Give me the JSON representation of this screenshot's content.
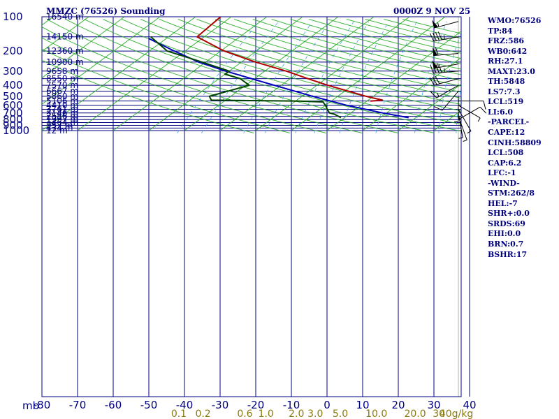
{
  "header": {
    "title": "MMZC (76526) Sounding",
    "time": "0000Z  9 NOV 25"
  },
  "stats": [
    "WMO:76526",
    "TP:84",
    "FRZ:586",
    "WB0:642",
    "RH:27.1",
    "MAXT:23.0",
    "TH:5848",
    "LS7:7.3",
    "LCL:519",
    "LI:6.0",
    "-PARCEL-",
    "CAPE:12",
    "CINH:58809",
    "LCL:508",
    "CAP:6.2",
    "LFC:-1",
    "-WIND-",
    "STM:262/8",
    "HEL:-7",
    "SHR+:0.0",
    "SRDS:69",
    "EHI:0.0",
    "BRN:0.7",
    "BSHR:17"
  ],
  "colors": {
    "grid": "#000080",
    "dry_adiabat": "#22aa22",
    "moist_adiabat": "#333333",
    "mixing_ratio": "#3399ee",
    "temperature": "#b00000",
    "dewpoint": "#004400",
    "parcel": "#0000bb",
    "wind": "#000000",
    "mixing_label": "#8a7a10"
  },
  "chart_data": {
    "type": "skew-t",
    "title": "MMZC (76526) Sounding",
    "xlabel": "mb",
    "pressure_ticks": [
      "100",
      "200",
      "300",
      "400",
      "500",
      "600",
      "700",
      "800",
      "900",
      "1000"
    ],
    "temperature_ticks": [
      "-80",
      "-70",
      "-60",
      "-50",
      "-40",
      "-30",
      "-20",
      "-10",
      "0",
      "10",
      "20",
      "30",
      "40"
    ],
    "height_labels": [
      {
        "p": 100,
        "label": "16540 m"
      },
      {
        "p": 150,
        "label": "14150 m"
      },
      {
        "p": 200,
        "label": "12360 m"
      },
      {
        "p": 250,
        "label": "10900 m"
      },
      {
        "p": 300,
        "label": "9658 m"
      },
      {
        "p": 350,
        "label": "8550 m"
      },
      {
        "p": 400,
        "label": "7570 m"
      },
      {
        "p": 450,
        "label": "6667 m"
      },
      {
        "p": 500,
        "label": "5860 m"
      },
      {
        "p": 550,
        "label": "5106 m"
      },
      {
        "p": 600,
        "label": "4410 m"
      },
      {
        "p": 650,
        "label": "3761 m"
      },
      {
        "p": 700,
        "label": "3146 m"
      },
      {
        "p": 750,
        "label": "2556 m"
      },
      {
        "p": 800,
        "label": "1997 m"
      },
      {
        "p": 850,
        "label": "1464 m"
      },
      {
        "p": 900,
        "label": "957 m"
      },
      {
        "p": 950,
        "label": "474 m"
      },
      {
        "p": 1000,
        "label": "12 m"
      }
    ],
    "mixing_ratio_labels": [
      "0.1",
      "0.2",
      "0.6",
      "1.0",
      "2.0",
      "3.0",
      "5.0",
      "10.0",
      "20.0",
      "30",
      "40g/kg"
    ],
    "mixing_ratio_values": [
      0.1,
      0.2,
      0.6,
      1.0,
      2.0,
      3.0,
      5.0,
      10.0,
      20.0,
      30,
      40
    ],
    "temperature": [
      {
        "p": 100,
        "t": -73
      },
      {
        "p": 150,
        "t": -72
      },
      {
        "p": 200,
        "t": -59
      },
      {
        "p": 250,
        "t": -46
      },
      {
        "p": 300,
        "t": -34
      },
      {
        "p": 350,
        "t": -25
      },
      {
        "p": 400,
        "t": -17
      },
      {
        "p": 450,
        "t": -9
      },
      {
        "p": 500,
        "t": -2
      },
      {
        "p": 540,
        "t": 4
      },
      {
        "p": 550,
        "t": 1
      }
    ],
    "dewpoint": [
      {
        "p": 150,
        "t": -85
      },
      {
        "p": 200,
        "t": -75
      },
      {
        "p": 250,
        "t": -61
      },
      {
        "p": 300,
        "t": -50
      },
      {
        "p": 320,
        "t": -50
      },
      {
        "p": 350,
        "t": -44
      },
      {
        "p": 400,
        "t": -39
      },
      {
        "p": 500,
        "t": -46
      },
      {
        "p": 540,
        "t": -44
      },
      {
        "p": 550,
        "t": -19
      },
      {
        "p": 560,
        "t": -12
      },
      {
        "p": 600,
        "t": -10
      },
      {
        "p": 650,
        "t": -8
      },
      {
        "p": 700,
        "t": -6
      },
      {
        "p": 720,
        "t": -4
      },
      {
        "p": 770,
        "t": -1
      }
    ],
    "parcel": [
      {
        "p": 155,
        "t": -85
      },
      {
        "p": 200,
        "t": -73
      },
      {
        "p": 250,
        "t": -62
      },
      {
        "p": 300,
        "t": -51
      },
      {
        "p": 400,
        "t": -32
      },
      {
        "p": 500,
        "t": -17
      },
      {
        "p": 600,
        "t": -4
      },
      {
        "p": 700,
        "t": 9
      },
      {
        "p": 770,
        "t": 18
      }
    ],
    "winds": [
      {
        "p": 110,
        "speed": 55,
        "dir": 255
      },
      {
        "p": 150,
        "speed": 45,
        "dir": 260
      },
      {
        "p": 210,
        "speed": 60,
        "dir": 265
      },
      {
        "p": 260,
        "speed": 55,
        "dir": 260
      },
      {
        "p": 300,
        "speed": 45,
        "dir": 265
      },
      {
        "p": 350,
        "speed": 30,
        "dir": 255
      },
      {
        "p": 400,
        "speed": 15,
        "dir": 240
      },
      {
        "p": 450,
        "speed": 10,
        "dir": 220
      },
      {
        "p": 500,
        "speed": 5,
        "dir": 180
      },
      {
        "p": 550,
        "speed": 10,
        "dir": 90
      },
      {
        "p": 600,
        "speed": 5,
        "dir": 120
      },
      {
        "p": 650,
        "speed": 5,
        "dir": 150
      },
      {
        "p": 700,
        "speed": 5,
        "dir": 170
      },
      {
        "p": 750,
        "speed": 5,
        "dir": 160
      },
      {
        "p": 800,
        "speed": 10,
        "dir": 60
      }
    ]
  }
}
